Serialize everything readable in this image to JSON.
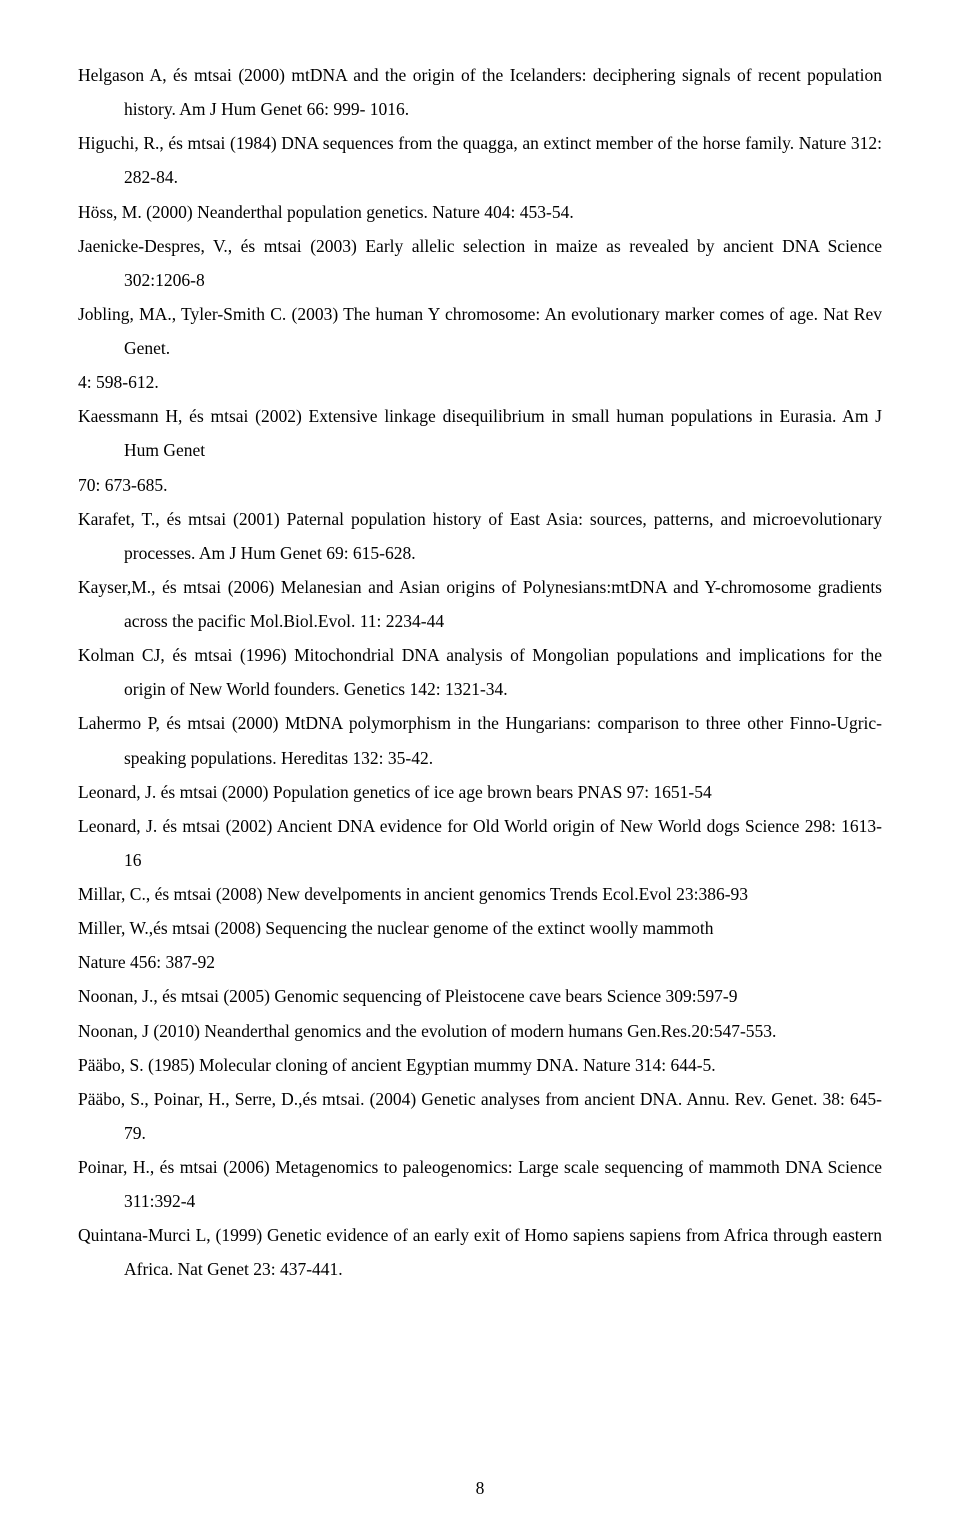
{
  "refs": {
    "r01": "Helgason A, és mtsai  (2000) mtDNA and the origin of the Icelanders: deciphering signals of recent population history. Am J Hum Genet 66: 999- 1016.",
    "r02": "Higuchi, R., és mtsai (1984) DNA sequences from the quagga, an extinct member of the horse family. Nature 312: 282-84.",
    "r03": "Höss, M. (2000) Neanderthal population genetics. Nature 404: 453-54.",
    "r04": "Jaenicke-Despres, V., és mtsai (2003) Early allelic selection in maize as revealed by ancient DNA Science 302:1206-8",
    "r05": "Jobling, MA., Tyler-Smith C. (2003) The human Y chromosome: An evolutionary marker comes of age. Nat Rev Genet.",
    "r05b": "4: 598-612.",
    "r06": "Kaessmann H, és mtsai (2002) Extensive linkage disequilibrium in small human populations in Eurasia. Am J Hum Genet",
    "r06b": "70: 673-685.",
    "r07": "Karafet, T., és mtsai (2001) Paternal population history of East Asia: sources, patterns, and microevolutionary processes. Am J  Hum  Genet 69: 615-628.",
    "r08": "Kayser,M., és mtsai (2006) Melanesian and Asian origins of Polynesians:mtDNA and Y-chromosome gradients across the pacific Mol.Biol.Evol. 11: 2234-44",
    "r09": "Kolman CJ, és mtsai (1996) Mitochondrial DNA analysis of Mongolian populations and implications for the origin of New World founders. Genetics 142: 1321-34.",
    "r10": "Lahermo P, és mtsai (2000) MtDNA polymorphism in the Hungarians: comparison to three other Finno-Ugric-speaking populations. Hereditas 132: 35-42.",
    "r11": "Leonard, J. és mtsai (2000) Population genetics of ice age brown bears PNAS 97: 1651-54",
    "r12": "Leonard, J. és mtsai (2002) Ancient DNA evidence for Old World origin of New World dogs Science 298: 1613-16",
    "r13": "Millar, C., és mtsai (2008) New develpoments in ancient genomics Trends Ecol.Evol 23:386-93",
    "r14": "Miller, W.,és mtsai (2008) Sequencing the nuclear genome of the extinct woolly mammoth",
    "r14b": "Nature 456: 387-92",
    "r15": "Noonan, J., és mtsai (2005) Genomic sequencing of Pleistocene cave bears Science 309:597-9",
    "r16": "Noonan, J (2010) Neanderthal genomics and the  evolution of modern humans Gen.Res.20:547-553.",
    "r17": "Pääbo, S. (1985) Molecular cloning of ancient Egyptian mummy DNA. Nature 314: 644-5.",
    "r18": "Pääbo, S., Poinar, H., Serre, D.,és mtsai. (2004) Genetic analyses from ancient DNA. Annu. Rev. Genet. 38: 645-79.",
    "r19": "Poinar, H., és mtsai (2006) Metagenomics to paleogenomics: Large scale sequencing of mammoth DNA Science 311:392-4",
    "r20": "Quintana-Murci L, (1999) Genetic evidence of an early exit of Homo sapiens sapiens from Africa through eastern Africa. Nat Genet 23: 437-441."
  },
  "pageNumber": "8"
}
